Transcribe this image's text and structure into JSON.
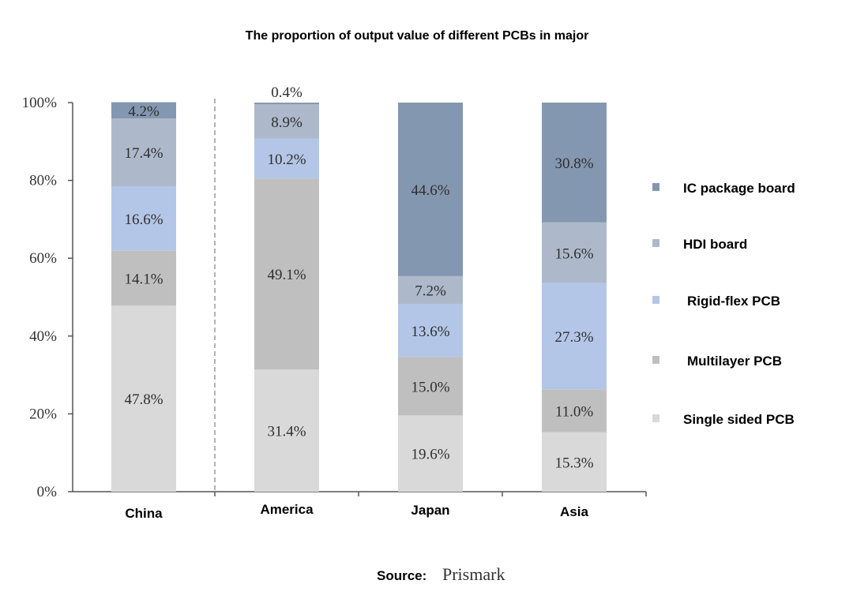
{
  "chart_data": {
    "type": "bar",
    "stacked": true,
    "title": "The proportion of output value of different PCBs in major",
    "categories": [
      "China",
      "America",
      "Japan",
      "Asia"
    ],
    "ylim": [
      0,
      100
    ],
    "yticks": [
      "0%",
      "20%",
      "40%",
      "60%",
      "80%",
      "100%"
    ],
    "legend_position": "right",
    "series": [
      {
        "name": "Single sided PCB",
        "color": "#d9d9d9",
        "values": [
          47.8,
          31.4,
          19.6,
          15.3
        ],
        "labels": [
          "47.8%",
          "31.4%",
          "19.6%",
          "15.3%"
        ]
      },
      {
        "name": "Multilayer PCB",
        "color": "#bfbfbf",
        "values": [
          14.1,
          49.1,
          15.0,
          11.0
        ],
        "labels": [
          "14.1%",
          "49.1%",
          "15.0%",
          "11.0%"
        ]
      },
      {
        "name": "Rigid-flex PCB",
        "color": "#b4c6e7",
        "values": [
          16.6,
          10.2,
          13.6,
          27.3
        ],
        "labels": [
          "16.6%",
          "10.2%",
          "13.6%",
          "27.3%"
        ]
      },
      {
        "name": "HDI board",
        "color": "#adb9ca",
        "values": [
          17.4,
          8.9,
          7.2,
          15.6
        ],
        "labels": [
          "17.4%",
          "8.9%",
          "7.2%",
          "15.6%"
        ]
      },
      {
        "name": "IC package board",
        "color": "#8497b0",
        "values": [
          4.2,
          0.4,
          44.6,
          30.8
        ],
        "labels": [
          "4.2%",
          "0.4%",
          "44.6%",
          "30.8%"
        ]
      }
    ]
  },
  "source": {
    "label": "Source:",
    "value": "Prismark"
  }
}
